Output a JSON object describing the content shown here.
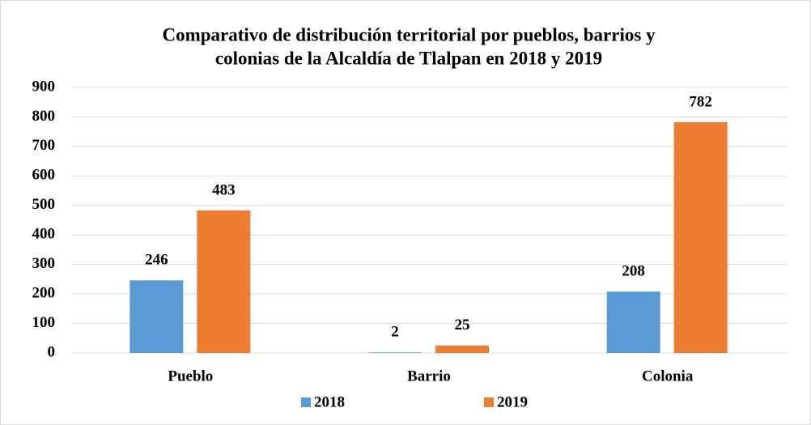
{
  "chart_data": {
    "type": "bar",
    "title": [
      "Comparativo de distribución territorial por pueblos, barrios y",
      "colonias de la Alcaldía de Tlalpan en 2018 y 2019"
    ],
    "categories": [
      "Pueblo",
      "Barrio",
      "Colonia"
    ],
    "series": [
      {
        "name": "2018",
        "color": "#5b9bd5",
        "values": [
          246,
          2,
          208
        ]
      },
      {
        "name": "2019",
        "color": "#ed7d31",
        "values": [
          483,
          25,
          782
        ]
      }
    ],
    "ylim": [
      0,
      900
    ],
    "yticks": [
      0,
      100,
      200,
      300,
      400,
      500,
      600,
      700,
      800,
      900
    ],
    "grid": true,
    "legend": "bottom"
  }
}
